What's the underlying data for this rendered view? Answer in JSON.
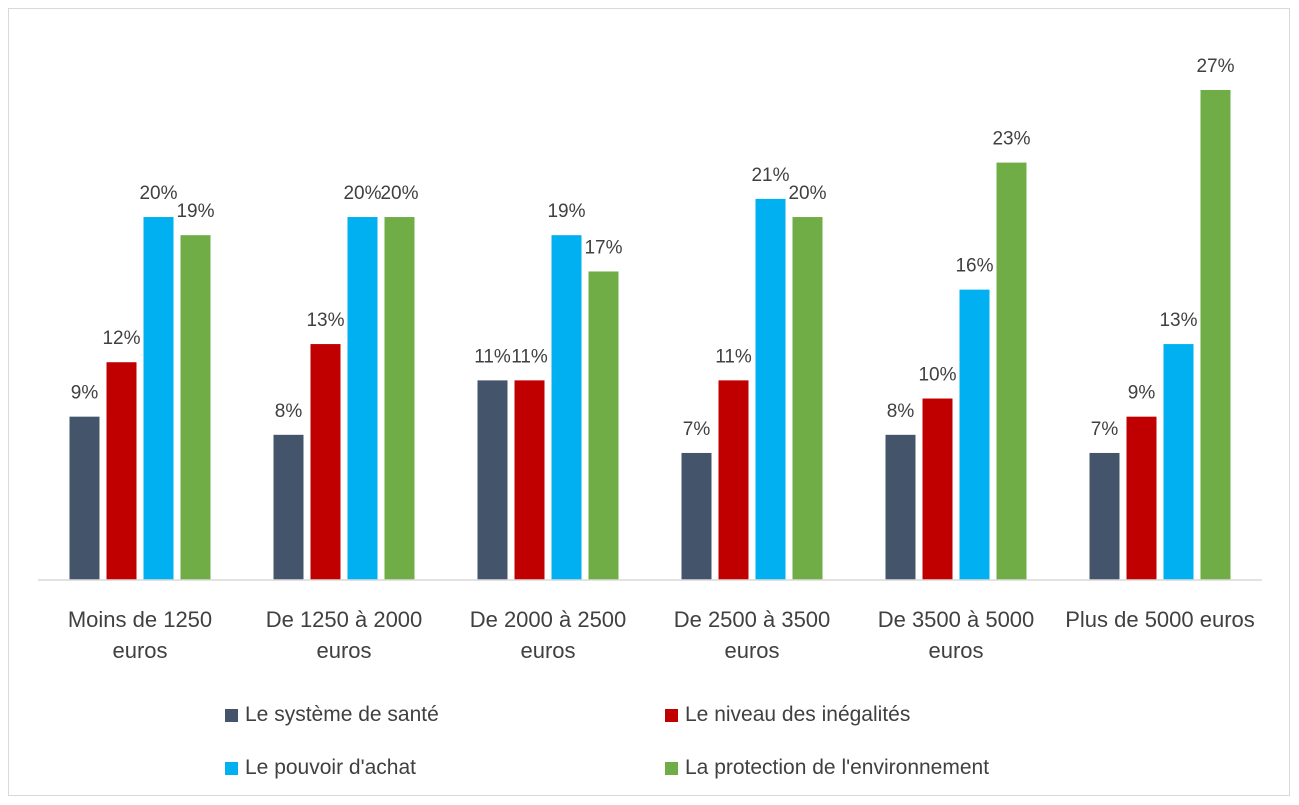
{
  "chart_data": {
    "type": "bar",
    "categories": [
      "Moins de 1250 euros",
      "De 1250 à 2000 euros",
      "De 2000 à 2500 euros",
      "De 2500 à 3500 euros",
      "De 3500 à 5000 euros",
      "Plus de 5000 euros"
    ],
    "series": [
      {
        "name": "Le système de santé",
        "color": "#44546a",
        "values": [
          9,
          8,
          11,
          7,
          8,
          7
        ],
        "value_labels": [
          "9%",
          "8%",
          "11%",
          "7%",
          "8%",
          "7%"
        ]
      },
      {
        "name": "Le niveau des inégalités",
        "color": "#c00000",
        "values": [
          12,
          13,
          11,
          11,
          10,
          9
        ],
        "value_labels": [
          "12%",
          "13%",
          "11%",
          "11%",
          "10%",
          "9%"
        ]
      },
      {
        "name": "Le pouvoir d'achat",
        "color": "#00b0f0",
        "values": [
          20,
          20,
          19,
          21,
          16,
          13
        ],
        "value_labels": [
          "20%",
          "20%",
          "19%",
          "21%",
          "16%",
          "13%"
        ]
      },
      {
        "name": "La protection de l'environnement",
        "color": "#70ad47",
        "values": [
          19,
          20,
          17,
          20,
          23,
          27
        ],
        "value_labels": [
          "19%",
          "20%",
          "17%",
          "20%",
          "23%",
          "27%"
        ]
      }
    ]
  }
}
